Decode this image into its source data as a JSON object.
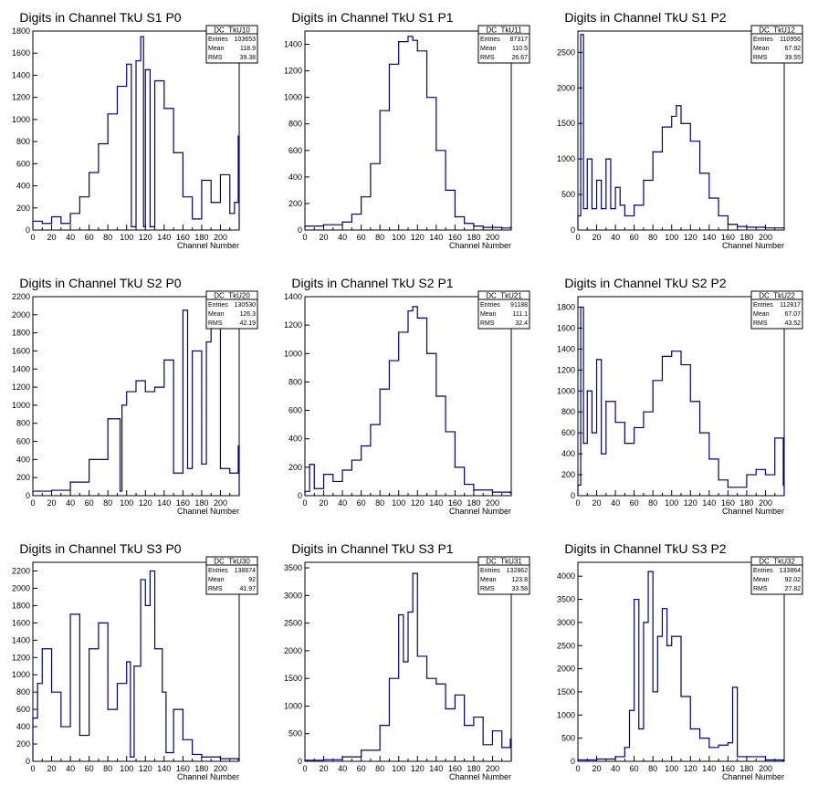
{
  "chart_data": [
    {
      "type": "bar",
      "id": "DC_TkU10",
      "title": "Digits in Channel TkU S1 P0",
      "xlabel": "Channel Number",
      "ylabel": "",
      "xlim": [
        0,
        220
      ],
      "ylim": [
        0,
        1800
      ],
      "xticks": [
        0,
        20,
        40,
        60,
        80,
        100,
        120,
        140,
        160,
        180,
        200
      ],
      "yticks": [
        200,
        400,
        600,
        800,
        1000,
        1200,
        1400,
        1600,
        1800
      ],
      "stats": {
        "name": "DC_TkU10",
        "entries": "103653",
        "mean": "118.9",
        "rms": "39.38"
      },
      "x": [
        0,
        10,
        20,
        30,
        40,
        50,
        60,
        70,
        80,
        90,
        100,
        105,
        110,
        115,
        118,
        120,
        125,
        130,
        140,
        150,
        160,
        170,
        180,
        190,
        200,
        210,
        215,
        219
      ],
      "values": [
        80,
        60,
        120,
        60,
        150,
        300,
        520,
        780,
        1050,
        1300,
        1500,
        30,
        1530,
        1750,
        30,
        1450,
        30,
        1350,
        1100,
        700,
        300,
        100,
        450,
        250,
        500,
        150,
        250,
        850
      ]
    },
    {
      "type": "bar",
      "id": "DC_TkU11",
      "title": "Digits in Channel TkU S1 P1",
      "xlabel": "Channel Number",
      "ylabel": "",
      "xlim": [
        0,
        220
      ],
      "ylim": [
        0,
        1500
      ],
      "xticks": [
        0,
        20,
        40,
        60,
        80,
        100,
        120,
        140,
        160,
        180,
        200
      ],
      "yticks": [
        200,
        400,
        600,
        800,
        1000,
        1200,
        1400
      ],
      "stats": {
        "name": "DC_TkU11",
        "entries": "87317",
        "mean": "110.5",
        "rms": "26.67"
      },
      "x": [
        0,
        20,
        40,
        50,
        60,
        70,
        80,
        90,
        100,
        110,
        115,
        120,
        130,
        140,
        150,
        160,
        170,
        180,
        190,
        200,
        210,
        219
      ],
      "values": [
        30,
        40,
        60,
        120,
        250,
        500,
        900,
        1250,
        1420,
        1460,
        1430,
        1350,
        1000,
        600,
        300,
        100,
        50,
        30,
        20,
        20,
        15,
        20
      ]
    },
    {
      "type": "bar",
      "id": "DC_TkU12",
      "title": "Digits in Channel TkU S1 P2",
      "xlabel": "Channel Number",
      "ylabel": "",
      "xlim": [
        0,
        220
      ],
      "ylim": [
        0,
        2800
      ],
      "xticks": [
        0,
        20,
        40,
        60,
        80,
        100,
        120,
        140,
        160,
        180,
        200
      ],
      "yticks": [
        500,
        1000,
        1500,
        2000,
        2500
      ],
      "stats": {
        "name": "DC_TkU12",
        "entries": "110956",
        "mean": "67.92",
        "rms": "39.55"
      },
      "x": [
        0,
        3,
        6,
        10,
        15,
        20,
        25,
        30,
        35,
        40,
        45,
        50,
        60,
        70,
        80,
        90,
        100,
        105,
        110,
        120,
        130,
        140,
        150,
        160,
        170,
        180,
        200,
        219
      ],
      "values": [
        200,
        2750,
        300,
        1000,
        300,
        700,
        300,
        1000,
        300,
        600,
        350,
        200,
        350,
        700,
        1100,
        1450,
        1600,
        1750,
        1500,
        1250,
        800,
        450,
        200,
        80,
        50,
        40,
        30,
        30
      ]
    },
    {
      "type": "bar",
      "id": "DC_TkU20",
      "title": "Digits in Channel TkU S2 P0",
      "xlabel": "Channel Number",
      "ylabel": "",
      "xlim": [
        0,
        220
      ],
      "ylim": [
        0,
        2200
      ],
      "xticks": [
        0,
        20,
        40,
        60,
        80,
        100,
        120,
        140,
        160,
        180,
        200
      ],
      "yticks": [
        200,
        400,
        600,
        800,
        1000,
        1200,
        1400,
        1600,
        1800,
        2000,
        2200
      ],
      "stats": {
        "name": "DC_TkU20",
        "entries": "130530",
        "mean": "126.3",
        "rms": "42.19"
      },
      "x": [
        0,
        20,
        40,
        60,
        80,
        93,
        95,
        100,
        110,
        120,
        130,
        140,
        150,
        160,
        165,
        170,
        180,
        185,
        190,
        200,
        210,
        219
      ],
      "values": [
        50,
        60,
        150,
        400,
        850,
        50,
        1000,
        1150,
        1270,
        1150,
        1200,
        1500,
        250,
        2050,
        300,
        1600,
        350,
        1700,
        2100,
        300,
        250,
        550
      ]
    },
    {
      "type": "bar",
      "id": "DC_TkU21",
      "title": "Digits in Channel TkU S2 P1",
      "xlabel": "Channel Number",
      "ylabel": "",
      "xlim": [
        0,
        220
      ],
      "ylim": [
        0,
        1400
      ],
      "xticks": [
        0,
        20,
        40,
        60,
        80,
        100,
        120,
        140,
        160,
        180,
        200
      ],
      "yticks": [
        200,
        400,
        600,
        800,
        1000,
        1200,
        1400
      ],
      "stats": {
        "name": "DC_TkU21",
        "entries": "91188",
        "mean": "111.1",
        "rms": "32.4"
      },
      "x": [
        0,
        5,
        10,
        20,
        30,
        40,
        50,
        60,
        70,
        80,
        90,
        100,
        110,
        115,
        120,
        130,
        140,
        150,
        160,
        170,
        180,
        200,
        219
      ],
      "values": [
        30,
        220,
        50,
        150,
        100,
        180,
        250,
        350,
        500,
        750,
        950,
        1150,
        1300,
        1330,
        1250,
        1000,
        700,
        450,
        200,
        80,
        40,
        25,
        20
      ]
    },
    {
      "type": "bar",
      "id": "DC_TkU22",
      "title": "Digits in Channel TkU S2 P2",
      "xlabel": "Channel Number",
      "ylabel": "",
      "xlim": [
        0,
        220
      ],
      "ylim": [
        0,
        1900
      ],
      "xticks": [
        0,
        20,
        40,
        60,
        80,
        100,
        120,
        140,
        160,
        180,
        200
      ],
      "yticks": [
        200,
        400,
        600,
        800,
        1000,
        1200,
        1400,
        1600,
        1800
      ],
      "stats": {
        "name": "DC_TkU22",
        "entries": "112817",
        "mean": "67.07",
        "rms": "43.52"
      },
      "x": [
        0,
        3,
        6,
        10,
        15,
        20,
        25,
        30,
        40,
        50,
        60,
        70,
        80,
        90,
        100,
        110,
        120,
        130,
        140,
        150,
        160,
        180,
        190,
        200,
        210,
        219
      ],
      "values": [
        100,
        1800,
        500,
        1000,
        600,
        1300,
        400,
        900,
        700,
        500,
        650,
        800,
        1100,
        1330,
        1380,
        1250,
        900,
        600,
        350,
        150,
        80,
        200,
        250,
        200,
        550,
        100
      ]
    },
    {
      "type": "bar",
      "id": "DC_TkU30",
      "title": "Digits in Channel TkU S3 P0",
      "xlabel": "Channel Number",
      "ylabel": "",
      "xlim": [
        0,
        220
      ],
      "ylim": [
        0,
        2300
      ],
      "xticks": [
        0,
        20,
        40,
        60,
        80,
        100,
        120,
        140,
        160,
        180,
        200
      ],
      "yticks": [
        200,
        400,
        600,
        800,
        1000,
        1200,
        1400,
        1600,
        1800,
        2000,
        2200
      ],
      "stats": {
        "name": "DC_TkU30",
        "entries": "138674",
        "mean": "92",
        "rms": "41.97"
      },
      "x": [
        0,
        5,
        10,
        20,
        30,
        40,
        50,
        60,
        70,
        80,
        90,
        100,
        104,
        108,
        115,
        120,
        125,
        130,
        138,
        142,
        150,
        160,
        170,
        180,
        200,
        219
      ],
      "values": [
        500,
        900,
        1300,
        800,
        400,
        1700,
        300,
        1300,
        1600,
        600,
        900,
        1150,
        50,
        1100,
        2100,
        1800,
        2200,
        1300,
        800,
        100,
        600,
        250,
        80,
        50,
        30,
        20
      ]
    },
    {
      "type": "bar",
      "id": "DC_TkU31",
      "title": "Digits in Channel TkU S3 P1",
      "xlabel": "Channel Number",
      "ylabel": "",
      "xlim": [
        0,
        220
      ],
      "ylim": [
        0,
        3600
      ],
      "xticks": [
        0,
        20,
        40,
        60,
        80,
        100,
        120,
        140,
        160,
        180,
        200
      ],
      "yticks": [
        500,
        1000,
        1500,
        2000,
        2500,
        3000,
        3500
      ],
      "stats": {
        "name": "DC_TkU31",
        "entries": "132862",
        "mean": "123.8",
        "rms": "33.58"
      },
      "x": [
        0,
        20,
        40,
        60,
        80,
        90,
        100,
        105,
        110,
        115,
        120,
        130,
        140,
        150,
        160,
        170,
        180,
        190,
        200,
        210,
        219
      ],
      "values": [
        20,
        30,
        80,
        200,
        650,
        1500,
        2650,
        1800,
        2700,
        3400,
        1900,
        1500,
        1400,
        950,
        1200,
        650,
        800,
        300,
        550,
        250,
        400
      ]
    },
    {
      "type": "bar",
      "id": "DC_TkU32",
      "title": "Digits in Channel TkU S3 P2",
      "xlabel": "Channel Number",
      "ylabel": "",
      "xlim": [
        0,
        220
      ],
      "ylim": [
        0,
        4300
      ],
      "xticks": [
        0,
        20,
        40,
        60,
        80,
        100,
        120,
        140,
        160,
        180,
        200
      ],
      "yticks": [
        500,
        1000,
        1500,
        2000,
        2500,
        3000,
        3500,
        4000
      ],
      "stats": {
        "name": "DC_TkU32",
        "entries": "133864",
        "mean": "92.02",
        "rms": "27.82"
      },
      "x": [
        0,
        20,
        40,
        50,
        55,
        60,
        65,
        70,
        75,
        80,
        85,
        90,
        95,
        100,
        110,
        120,
        130,
        140,
        150,
        160,
        165,
        170,
        200,
        219
      ],
      "values": [
        30,
        50,
        100,
        300,
        1100,
        3500,
        700,
        3000,
        4100,
        1500,
        2700,
        3300,
        2500,
        2700,
        1400,
        700,
        500,
        300,
        350,
        400,
        1600,
        100,
        30,
        20
      ]
    }
  ],
  "stats_labels": {
    "entries": "Entries",
    "mean": "Mean",
    "rms": "RMS"
  },
  "colors": {
    "line": "#00007f",
    "axis": "#000000",
    "background": "#ffffff"
  }
}
